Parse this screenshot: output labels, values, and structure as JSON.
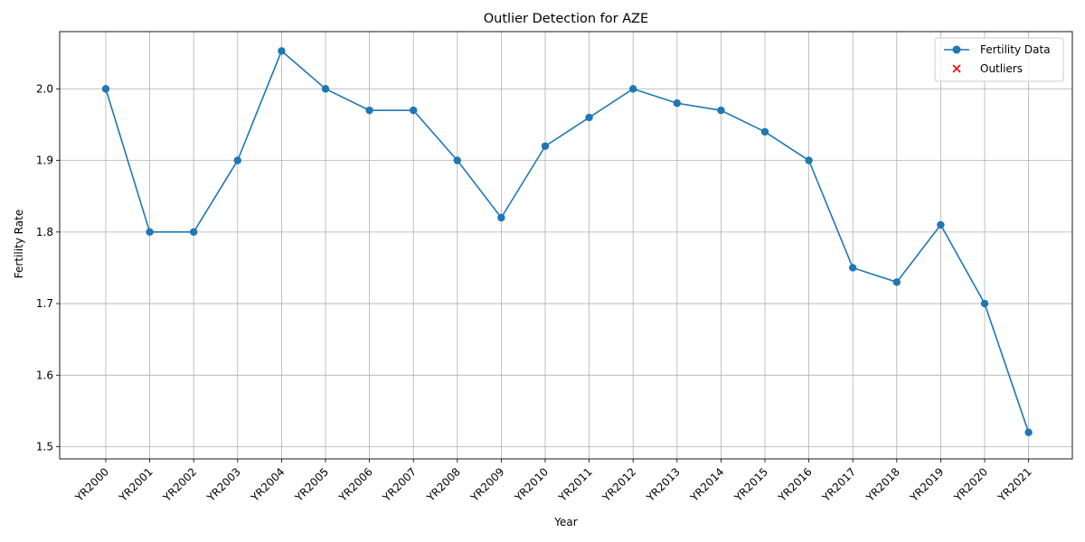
{
  "chart_data": {
    "type": "line",
    "title": "Outlier Detection for AZE",
    "xlabel": "Year",
    "ylabel": "Fertility Rate",
    "categories": [
      "YR2000",
      "YR2001",
      "YR2002",
      "YR2003",
      "YR2004",
      "YR2005",
      "YR2006",
      "YR2007",
      "YR2008",
      "YR2009",
      "YR2010",
      "YR2011",
      "YR2012",
      "YR2013",
      "YR2014",
      "YR2015",
      "YR2016",
      "YR2017",
      "YR2018",
      "YR2019",
      "YR2020",
      "YR2021"
    ],
    "series": [
      {
        "name": "Fertility Data",
        "color": "#1f77b4",
        "marker": "circle",
        "values": [
          2.0,
          1.8,
          1.8,
          1.9,
          2.053,
          2.0,
          1.97,
          1.97,
          1.9,
          1.82,
          1.92,
          1.96,
          2.0,
          1.98,
          1.97,
          1.94,
          1.9,
          1.75,
          1.73,
          1.81,
          1.7,
          1.52
        ]
      },
      {
        "name": "Outliers",
        "color": "#ff0000",
        "marker": "x",
        "points": []
      }
    ],
    "yticks": [
      1.5,
      1.6,
      1.7,
      1.8,
      1.9,
      2.0
    ],
    "ylim": [
      1.483,
      2.08
    ],
    "grid": true,
    "legend_position": "top-right"
  }
}
